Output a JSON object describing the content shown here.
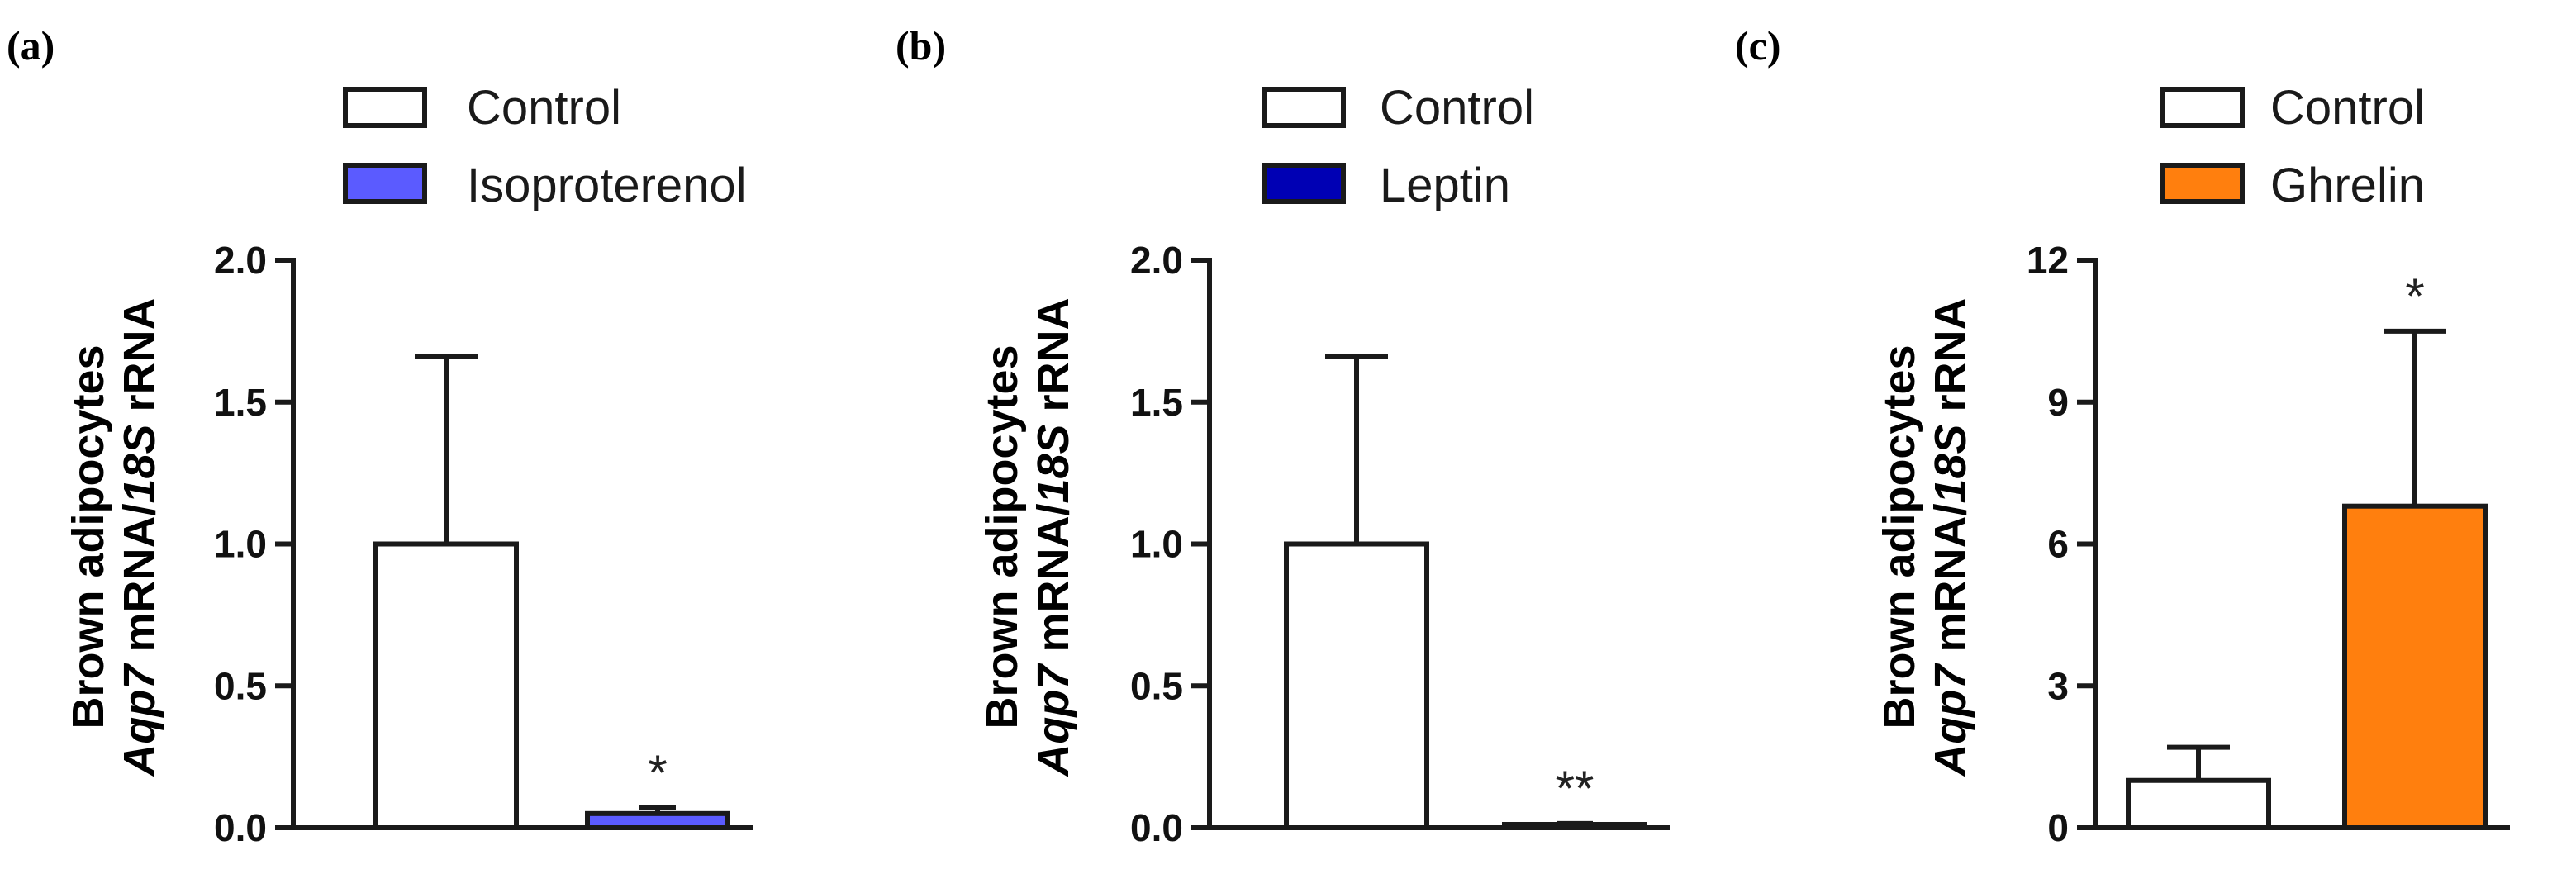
{
  "figure": {
    "panels": [
      {
        "label": "(a)",
        "chart_data": {
          "type": "bar",
          "categories": [
            "Control",
            "Isoproterenol"
          ],
          "values": [
            1.0,
            0.05
          ],
          "errors": [
            0.66,
            0.02
          ],
          "significance": [
            "",
            "*"
          ],
          "colors": [
            "#ffffff",
            "#5b5bff"
          ],
          "legend": [
            "Control",
            "Isoproterenol"
          ],
          "legend_position": "top",
          "ylabel_line1": "Brown adipocytes",
          "ylabel_line2_italic1": "Aqp7",
          "ylabel_line2_mid": " mRNA/",
          "ylabel_line2_italic2": "18S",
          "ylabel_line2_end": " rRNA",
          "yticks": [
            "0.0",
            "0.5",
            "1.0",
            "1.5",
            "2.0"
          ],
          "ytick_values": [
            0,
            0.5,
            1.0,
            1.5,
            2.0
          ],
          "ylim": [
            0,
            2.0
          ],
          "grid": false
        }
      },
      {
        "label": "(b)",
        "chart_data": {
          "type": "bar",
          "categories": [
            "Control",
            "Leptin"
          ],
          "values": [
            1.0,
            0.01
          ],
          "errors": [
            0.66,
            0.005
          ],
          "significance": [
            "",
            "**"
          ],
          "colors": [
            "#ffffff",
            "#0000b4"
          ],
          "legend": [
            "Control",
            "Leptin"
          ],
          "legend_position": "top",
          "ylabel_line1": "Brown adipocytes",
          "ylabel_line2_italic1": "Aqp7",
          "ylabel_line2_mid": " mRNA/",
          "ylabel_line2_italic2": "18S",
          "ylabel_line2_end": " rRNA",
          "yticks": [
            "0.0",
            "0.5",
            "1.0",
            "1.5",
            "2.0"
          ],
          "ytick_values": [
            0,
            0.5,
            1.0,
            1.5,
            2.0
          ],
          "ylim": [
            0,
            2.0
          ],
          "grid": false
        }
      },
      {
        "label": "(c)",
        "chart_data": {
          "type": "bar",
          "categories": [
            "Control",
            "Ghrelin"
          ],
          "values": [
            1.0,
            6.8
          ],
          "errors": [
            0.7,
            3.7
          ],
          "significance": [
            "",
            "*"
          ],
          "colors": [
            "#ffffff",
            "#ff7f0e"
          ],
          "legend": [
            "Control",
            "Ghrelin"
          ],
          "legend_position": "top",
          "ylabel_line1": "Brown adipocytes",
          "ylabel_line2_italic1": "Aqp7",
          "ylabel_line2_mid": " mRNA/",
          "ylabel_line2_italic2": "18S",
          "ylabel_line2_end": " rRNA",
          "yticks": [
            "0",
            "3",
            "6",
            "9",
            "12"
          ],
          "ytick_values": [
            0,
            3,
            6,
            9,
            12
          ],
          "ylim": [
            0,
            12
          ],
          "grid": false
        }
      }
    ]
  }
}
